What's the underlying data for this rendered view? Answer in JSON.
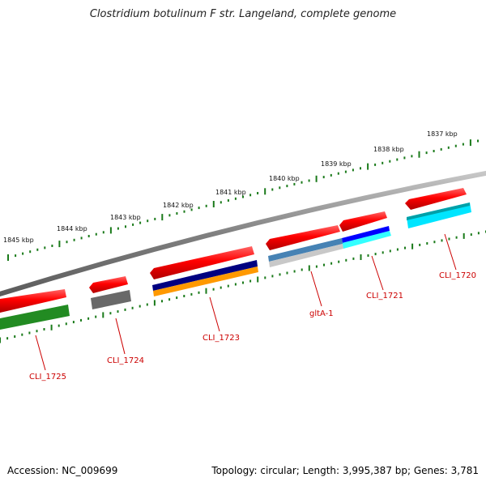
{
  "title": "Clostridium botulinum F str. Langeland, complete genome",
  "footer": {
    "accession": "Accession: NC_009699",
    "summary": "Topology: circular; Length: 3,995,387 bp; Genes: 3,781"
  },
  "ruler_labels": [
    "1837 kbp",
    "1838 kbp",
    "1839 kbp",
    "1840 kbp",
    "1841 kbp",
    "1842 kbp",
    "1843 kbp",
    "1844 kbp",
    "1845 kbp"
  ],
  "gene_labels": [
    "CLI_1720",
    "CLI_1721",
    "gltA-1",
    "CLI_1723",
    "CLI_1724",
    "CLI_1725"
  ],
  "colors": {
    "cds": "#ff0000",
    "backbone": "#8a8a8a",
    "ticks": "#1a7a1a",
    "label": "#cc0000",
    "cog_green": "#228b22",
    "cog_gray": "#696969",
    "cog_navy": "#000080",
    "cog_orange": "#ff9900",
    "cog_steelblue": "#4682b4",
    "cog_silver": "#c0c0c0",
    "cog_blue": "#0000ff",
    "cog_cyan": "#00ffff"
  }
}
